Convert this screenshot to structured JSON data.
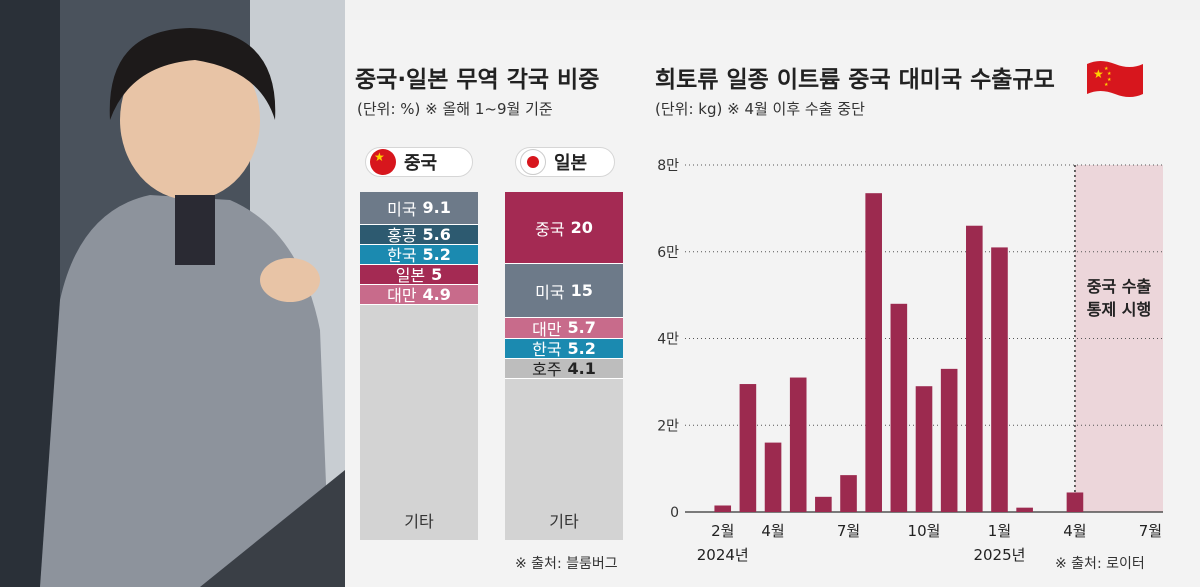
{
  "left_chart": {
    "title": "중국·일본 무역 각국 비중",
    "subtitle": "(단위: %) ※ 올해 1~9월 기준",
    "source": "※ 출처: 블룸버그",
    "countries": [
      {
        "name": "중국",
        "flag": "china-flag",
        "segments": [
          {
            "label": "미국",
            "value": 9.1,
            "value_text": "9.1",
            "color": "#6d7a89"
          },
          {
            "label": "홍콩",
            "value": 5.6,
            "value_text": "5.6",
            "color": "#2d5a70"
          },
          {
            "label": "한국",
            "value": 5.2,
            "value_text": "5.2",
            "color": "#1b8ab0"
          },
          {
            "label": "일본",
            "value": 5,
            "value_text": "5",
            "color": "#a42a53"
          },
          {
            "label": "대만",
            "value": 4.9,
            "value_text": "4.9",
            "color": "#c86b8b"
          }
        ],
        "other_label": "기타"
      },
      {
        "name": "일본",
        "flag": "japan-flag",
        "segments": [
          {
            "label": "중국",
            "value": 20,
            "value_text": "20",
            "color": "#a42a53"
          },
          {
            "label": "미국",
            "value": 15,
            "value_text": "15",
            "color": "#6d7a89"
          },
          {
            "label": "대만",
            "value": 5.7,
            "value_text": "5.7",
            "color": "#c86b8b"
          },
          {
            "label": "한국",
            "value": 5.2,
            "value_text": "5.2",
            "color": "#1b8ab0"
          },
          {
            "label": "호주",
            "value": 4.1,
            "value_text": "4.1",
            "color": "#bdbdbd"
          }
        ],
        "other_label": "기타"
      }
    ]
  },
  "chart_data": {
    "type": "bar",
    "title": "희토류 일종 이트륨 중국 대미국 수출규모",
    "subtitle": "(단위: kg) ※ 4월 이후 수출 중단",
    "source": "※ 출처: 로이터",
    "ylim": [
      0,
      80000
    ],
    "yticks": [
      {
        "value": 0,
        "label": "0"
      },
      {
        "value": 20000,
        "label": "2만"
      },
      {
        "value": 40000,
        "label": "4만"
      },
      {
        "value": 60000,
        "label": "6만"
      },
      {
        "value": 80000,
        "label": "8만"
      }
    ],
    "categories": [
      "2024-01",
      "2024-02",
      "2024-03",
      "2024-04",
      "2024-05",
      "2024-06",
      "2024-07",
      "2024-08",
      "2024-09",
      "2024-10",
      "2024-11",
      "2024-12",
      "2025-01",
      "2025-02",
      "2025-03",
      "2025-04",
      "2025-05",
      "2025-06",
      "2025-07"
    ],
    "values": [
      null,
      1500,
      29500,
      16000,
      31000,
      3500,
      8500,
      73500,
      48000,
      29000,
      33000,
      66000,
      61000,
      1000,
      null,
      4500,
      null,
      null,
      null
    ],
    "xtick_labels": [
      {
        "index": 1,
        "label": "2월"
      },
      {
        "index": 3,
        "label": "4월"
      },
      {
        "index": 6,
        "label": "7월"
      },
      {
        "index": 9,
        "label": "10월"
      },
      {
        "index": 12,
        "label": "1월"
      },
      {
        "index": 15,
        "label": "4월"
      },
      {
        "index": 18,
        "label": "7월"
      }
    ],
    "year_labels": [
      {
        "index": 1,
        "label": "2024년"
      },
      {
        "index": 12,
        "label": "2025년"
      }
    ],
    "annotation": {
      "line1": "중국 수출",
      "line2": "통제 시행"
    },
    "shaded_from_index": 15.5,
    "bar_color": "#9c2a4f",
    "shade_color": "#ecd6da"
  }
}
